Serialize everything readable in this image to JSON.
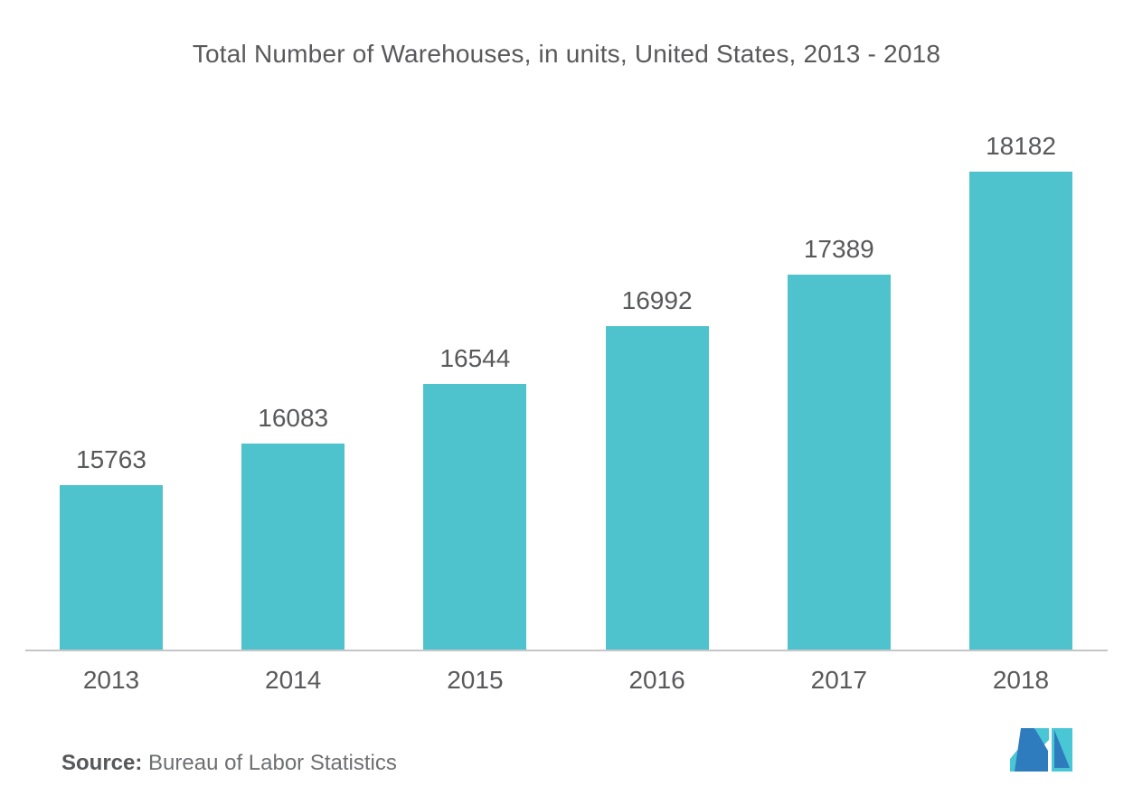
{
  "title": "Total Number of Warehouses, in units, United States, 2013 - 2018",
  "source": {
    "label": "Source:",
    "text": "Bureau of Labor Statistics"
  },
  "logo": {
    "name": "mordor-intelligence-logo",
    "teal": "#4AC7D4",
    "blue": "#2E7BBE"
  },
  "colors": {
    "bar": "#4EC3CD",
    "text": "#58595B",
    "axis": "#C5C6C7",
    "source_label": "#565759",
    "source_text": "#6E6F71",
    "background": "#FFFFFF"
  },
  "chart_data": {
    "type": "bar",
    "title": "Total Number of Warehouses, in units, United States, 2013 - 2018",
    "categories": [
      "2013",
      "2014",
      "2015",
      "2016",
      "2017",
      "2018"
    ],
    "values": [
      15763,
      16083,
      16544,
      16992,
      17389,
      18182
    ],
    "data_labels": [
      15763,
      16083,
      16544,
      16992,
      17389,
      18182
    ],
    "xlabel": "",
    "ylabel": "",
    "ylim": [
      14500,
      18500
    ],
    "grid": false,
    "legend": false,
    "bar_color": "#4EC3CD",
    "value_labels_shown": true,
    "y_axis_shown": false
  }
}
